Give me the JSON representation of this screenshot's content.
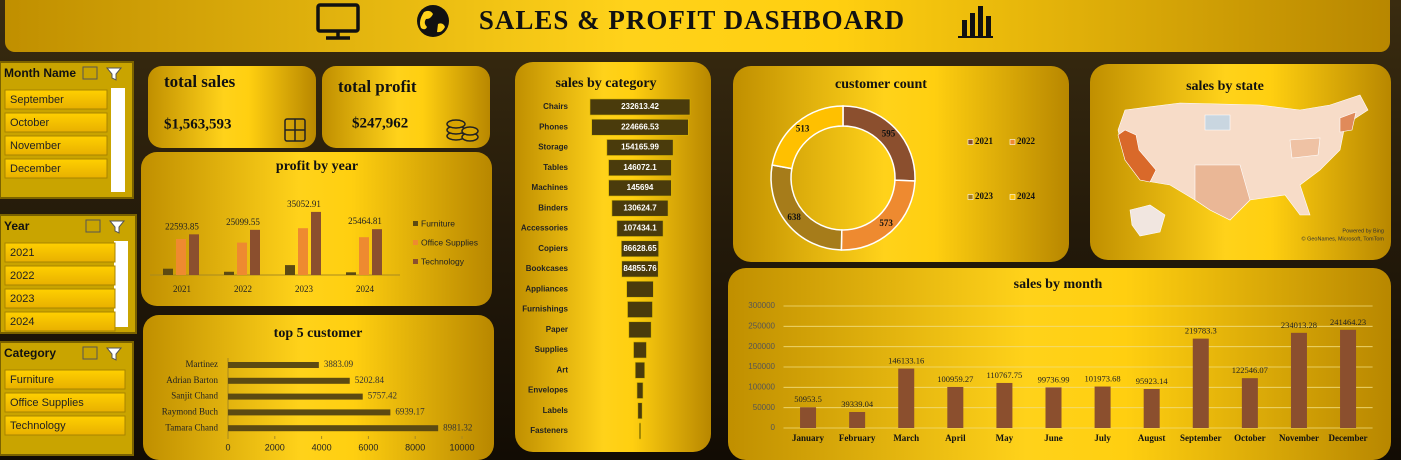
{
  "header": {
    "title": "SALES & PROFIT DASHBOARD"
  },
  "slicers": [
    {
      "title": "Month Name",
      "items": [
        "September",
        "October",
        "November",
        "December"
      ]
    },
    {
      "title": "Year",
      "items": [
        "2021",
        "2022",
        "2023",
        "2024"
      ]
    },
    {
      "title": "Category",
      "items": [
        "Furniture",
        "Office Supplies",
        "Technology"
      ]
    }
  ],
  "kpis": [
    {
      "label": "total sales",
      "value": "$1,563,593"
    },
    {
      "label": "total profit",
      "value": "$247,962"
    }
  ],
  "chart_data": [
    {
      "type": "grouped-bar",
      "title": "profit by year",
      "categories": [
        "2021",
        "2022",
        "2023",
        "2024"
      ],
      "series": [
        {
          "name": "Furniture",
          "color": "#5c4a12",
          "values": [
            3500,
            1800,
            5500,
            1500
          ]
        },
        {
          "name": "Office Supplies",
          "color": "#ee8a30",
          "values": [
            20000,
            18000,
            26000,
            21000
          ]
        },
        {
          "name": "Technology",
          "color": "#8b4f2e",
          "values": [
            22593.85,
            25099.55,
            35052.91,
            25464.81
          ],
          "data_labels": true
        }
      ],
      "ylim": [
        0,
        40000
      ],
      "legend": "right"
    },
    {
      "type": "hbar",
      "title": "top 5 customer",
      "categories": [
        "Martinez",
        "Adrian Barton",
        "Sanjit Chand",
        "Raymond Buch",
        "Tamara Chand"
      ],
      "values": [
        3883.09,
        5202.84,
        5757.42,
        6939.17,
        8981.32
      ],
      "color": "#5c4a12",
      "xlim": [
        0,
        10000
      ],
      "xticks": [
        0,
        2000,
        4000,
        6000,
        8000,
        10000
      ],
      "data_labels": true
    },
    {
      "type": "funnel",
      "title": "sales by category",
      "categories": [
        "Chairs",
        "Phones",
        "Storage",
        "Tables",
        "Machines",
        "Binders",
        "Accessories",
        "Copiers",
        "Bookcases",
        "Appliances",
        "Furnishings",
        "Paper",
        "Supplies",
        "Art",
        "Envelopes",
        "Labels",
        "Fasteners"
      ],
      "values": [
        232613.42,
        224666.53,
        154165.99,
        146072.1,
        145694,
        130624.7,
        107434.1,
        86628.65,
        84855.76,
        62000,
        58000,
        52000,
        30000,
        22000,
        14000,
        10000,
        3000
      ],
      "value_labels": [
        "232613.42",
        "224666.53",
        "154165.99",
        "146072.1",
        "145694",
        "130624.7",
        "107434.1",
        "86628.65",
        "84855.76",
        null,
        null,
        null,
        null,
        null,
        null,
        null,
        null
      ],
      "color": "#4a3b0c"
    },
    {
      "type": "donut",
      "title": "customer count",
      "categories": [
        "2021",
        "2022",
        "2023",
        "2024"
      ],
      "values": [
        595,
        573,
        638,
        513
      ],
      "colors": [
        "#8b4f2e",
        "#ee8a30",
        "#a67c1a",
        "#ffc000"
      ]
    },
    {
      "type": "map",
      "title": "sales by state",
      "attribution": [
        "Powered by Bing",
        "© GeoNames, Microsoft, TomTom"
      ]
    },
    {
      "type": "bar",
      "title": "sales by month",
      "categories": [
        "January",
        "February",
        "March",
        "April",
        "May",
        "June",
        "July",
        "August",
        "September",
        "October",
        "November",
        "December"
      ],
      "values": [
        50953.5,
        39339.04,
        146133.16,
        100959.27,
        110767.75,
        99736.99,
        101973.68,
        95923.14,
        219783.3,
        122546.07,
        234013.28,
        241464.23
      ],
      "color": "#8b4f2e",
      "ylim": [
        0,
        300000
      ],
      "yticks": [
        0,
        50000,
        100000,
        150000,
        200000,
        250000,
        300000
      ],
      "grid": true,
      "data_labels": true
    }
  ]
}
